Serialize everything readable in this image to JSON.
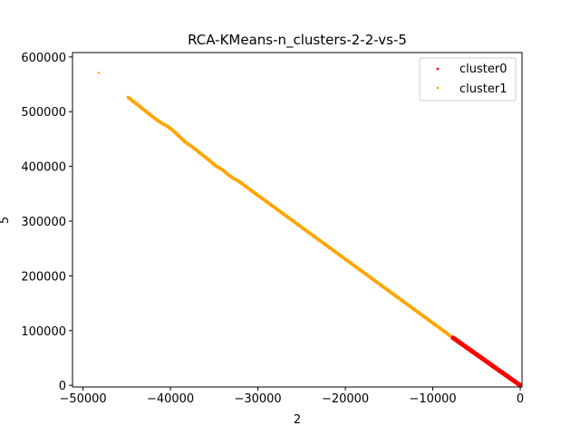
{
  "chart_data": {
    "type": "scatter",
    "title": "RCA-KMeans-n_clusters-2-2-vs-5",
    "xlabel": "2",
    "ylabel": "5",
    "xlim": [
      -51200,
      200
    ],
    "ylim": [
      -3000,
      608000
    ],
    "xticks": [
      -50000,
      -40000,
      -30000,
      -20000,
      -10000,
      0
    ],
    "xtick_labels": [
      "−50000",
      "−40000",
      "−30000",
      "−20000",
      "−10000",
      "0"
    ],
    "yticks": [
      0,
      100000,
      200000,
      300000,
      400000,
      500000,
      600000
    ],
    "ytick_labels": [
      "0",
      "100000",
      "200000",
      "300000",
      "400000",
      "500000",
      "600000"
    ],
    "grid": false,
    "legend_position": "top-right",
    "series": [
      {
        "name": "cluster0",
        "color": "#ff0000",
        "points": [
          [
            0,
            0
          ],
          [
            -200,
            2200
          ],
          [
            -400,
            4500
          ],
          [
            -600,
            6800
          ],
          [
            -800,
            9100
          ],
          [
            -1000,
            11300
          ],
          [
            -1300,
            14700
          ],
          [
            -1600,
            18100
          ],
          [
            -1900,
            21500
          ],
          [
            -2200,
            24800
          ],
          [
            -2500,
            28200
          ],
          [
            -2800,
            31600
          ],
          [
            -3100,
            35000
          ],
          [
            -3400,
            38400
          ],
          [
            -3700,
            41800
          ],
          [
            -4000,
            45200
          ],
          [
            -4300,
            48600
          ],
          [
            -4600,
            52000
          ],
          [
            -4900,
            55300
          ],
          [
            -5200,
            58700
          ],
          [
            -5500,
            62100
          ],
          [
            -5800,
            65500
          ],
          [
            -6100,
            68900
          ],
          [
            -6400,
            72300
          ],
          [
            -6700,
            75700
          ],
          [
            -7000,
            79100
          ],
          [
            -7300,
            82500
          ],
          [
            -7600,
            85900
          ],
          [
            -7800,
            88000
          ]
        ]
      },
      {
        "name": "cluster1",
        "color": "#ffa500",
        "points": [
          [
            -48200,
            571000
          ],
          [
            -44900,
            527000
          ],
          [
            -41900,
            489000
          ],
          [
            -41000,
            479000
          ],
          [
            -40300,
            473000
          ],
          [
            -39600,
            464000
          ],
          [
            -38800,
            452000
          ],
          [
            -38200,
            443000
          ],
          [
            -37600,
            437000
          ],
          [
            -36900,
            428000
          ],
          [
            -36200,
            419000
          ],
          [
            -35400,
            409000
          ],
          [
            -34900,
            402000
          ],
          [
            -34000,
            393000
          ],
          [
            -33400,
            385000
          ],
          [
            -32800,
            378000
          ],
          [
            -32200,
            373000
          ],
          [
            -31600,
            366000
          ],
          [
            -31000,
            359000
          ],
          [
            -30500,
            353000
          ],
          [
            -29900,
            346000
          ],
          [
            -29300,
            339000
          ],
          [
            -28700,
            332000
          ],
          [
            -28100,
            325000
          ],
          [
            -27500,
            318000
          ],
          [
            -26900,
            311000
          ],
          [
            -26300,
            304000
          ],
          [
            -25700,
            297000
          ],
          [
            -25100,
            290000
          ],
          [
            -24500,
            283000
          ],
          [
            -23900,
            276000
          ],
          [
            -23300,
            269000
          ],
          [
            -22700,
            262000
          ],
          [
            -22100,
            255000
          ],
          [
            -21500,
            248000
          ],
          [
            -20900,
            241000
          ],
          [
            -20300,
            234000
          ],
          [
            -19700,
            227000
          ],
          [
            -19100,
            220000
          ],
          [
            -18500,
            213000
          ],
          [
            -17900,
            206000
          ],
          [
            -17300,
            199000
          ],
          [
            -16700,
            192000
          ],
          [
            -16100,
            185000
          ],
          [
            -15500,
            178000
          ],
          [
            -14900,
            171000
          ],
          [
            -14300,
            164000
          ],
          [
            -13700,
            157000
          ],
          [
            -13100,
            150000
          ],
          [
            -12500,
            143000
          ],
          [
            -11900,
            136000
          ],
          [
            -11300,
            129000
          ],
          [
            -10700,
            122000
          ],
          [
            -10100,
            115000
          ],
          [
            -9500,
            108000
          ],
          [
            -8900,
            101000
          ],
          [
            -8300,
            94000
          ],
          [
            -8000,
            90000
          ]
        ]
      }
    ]
  }
}
